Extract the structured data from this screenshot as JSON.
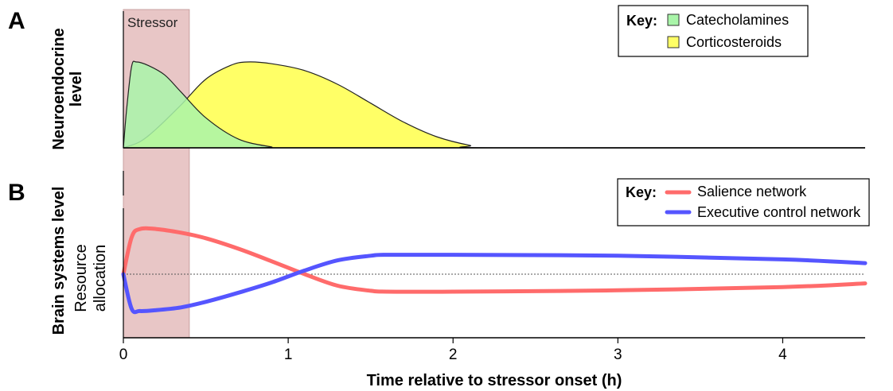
{
  "chart_data": [
    {
      "panel": "A",
      "type": "area",
      "ylabel": "Neuroendocrine level",
      "xlim": [
        0,
        4.5
      ],
      "annotation": "Stressor",
      "stressor_window": [
        0,
        0.4
      ],
      "legend": {
        "title": "Key:",
        "placement": "top-right"
      },
      "series": [
        {
          "name": "Catecholamines",
          "color": "#a9f5a9",
          "x": [
            0,
            0.02,
            0.05,
            0.08,
            0.15,
            0.25,
            0.35,
            0.5,
            0.7,
            0.9,
            0.95,
            4.5
          ],
          "y": [
            0,
            0.45,
            0.95,
            1.0,
            0.96,
            0.85,
            0.65,
            0.35,
            0.1,
            0.01,
            0,
            0
          ]
        },
        {
          "name": "Corticosteroids",
          "color": "#ffff66",
          "x": [
            0,
            0.1,
            0.2,
            0.35,
            0.5,
            0.65,
            0.75,
            0.9,
            1.1,
            1.3,
            1.5,
            1.7,
            1.9,
            2.1,
            2.25,
            4.5
          ],
          "y": [
            0,
            0.07,
            0.22,
            0.5,
            0.8,
            0.96,
            1.0,
            0.98,
            0.9,
            0.74,
            0.52,
            0.3,
            0.13,
            0.03,
            0,
            0
          ]
        }
      ]
    },
    {
      "panel": "B",
      "type": "line",
      "ylabel_main": "Brain systems level",
      "ylabel_sub": [
        "Resource",
        "allocation"
      ],
      "xlabel": "Time relative to stressor onset (h)",
      "xticks": [
        "0",
        "1",
        "2",
        "3",
        "4"
      ],
      "xtick_values": [
        0,
        1,
        2,
        3,
        4
      ],
      "xlim": [
        0,
        4.5
      ],
      "ylim": [
        -1,
        1
      ],
      "baseline": 0,
      "legend": {
        "title": "Key:",
        "placement": "top-right"
      },
      "series": [
        {
          "name": "Salience network",
          "color": "#ff6b6b",
          "x": [
            0,
            0.05,
            0.1,
            0.2,
            0.35,
            0.5,
            0.7,
            0.9,
            1.1,
            1.3,
            1.5,
            1.6,
            2,
            3,
            4,
            4.5
          ],
          "y": [
            0,
            0.8,
            0.98,
            0.98,
            0.9,
            0.78,
            0.55,
            0.28,
            0.0,
            -0.25,
            -0.36,
            -0.38,
            -0.38,
            -0.35,
            -0.28,
            -0.2
          ]
        },
        {
          "name": "Executive control network",
          "color": "#5555ff",
          "x": [
            0,
            0.05,
            0.1,
            0.2,
            0.35,
            0.5,
            0.7,
            0.9,
            1.1,
            1.3,
            1.5,
            1.6,
            2,
            3,
            4,
            4.5
          ],
          "y": [
            0,
            -0.75,
            -0.8,
            -0.78,
            -0.72,
            -0.6,
            -0.4,
            -0.18,
            0.08,
            0.3,
            0.4,
            0.42,
            0.42,
            0.4,
            0.32,
            0.24
          ]
        }
      ]
    }
  ]
}
